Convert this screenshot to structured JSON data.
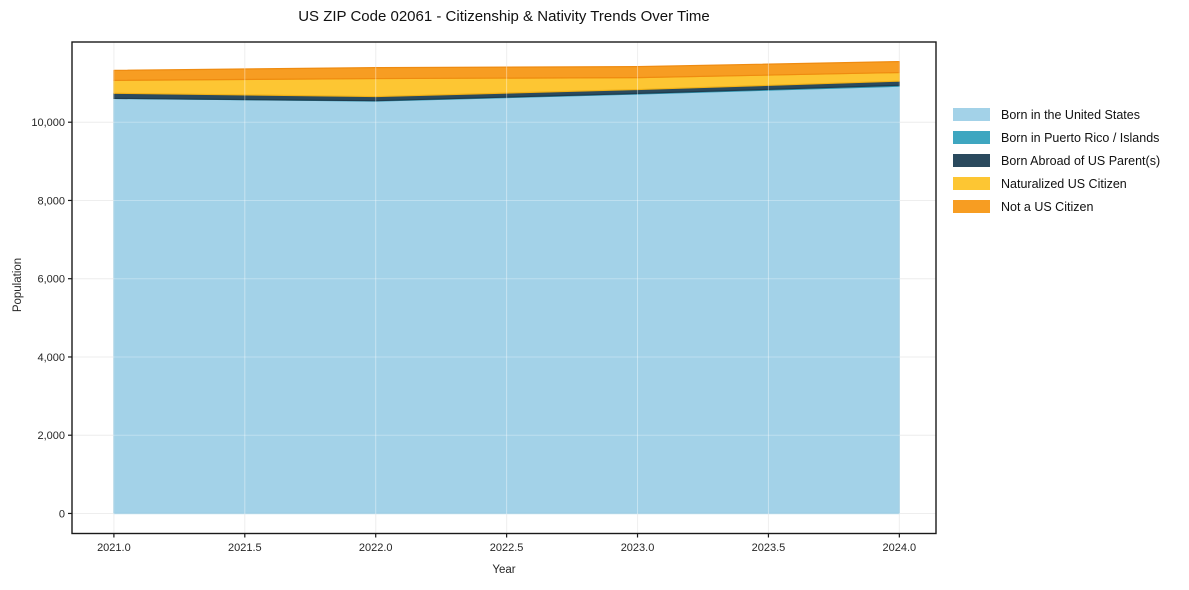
{
  "chart_data": {
    "type": "area",
    "stacked": true,
    "title": "US ZIP Code 02061 - Citizenship & Nativity Trends Over Time",
    "xlabel": "Year",
    "ylabel": "Population",
    "x": [
      2021,
      2022,
      2023,
      2024
    ],
    "series": [
      {
        "name": "Born in the United States",
        "values": [
          10610,
          10540,
          10720,
          10920
        ],
        "color": "#a3d2e8",
        "edge": "#8cc3dd"
      },
      {
        "name": "Born in Puerto Rico / Islands",
        "values": [
          0,
          10,
          15,
          25
        ],
        "color": "#3ea6c0",
        "edge": "#2e93ae"
      },
      {
        "name": "Born Abroad of US Parent(s)",
        "values": [
          130,
          105,
          100,
          105
        ],
        "color": "#2a4a5e",
        "edge": "#203c4d"
      },
      {
        "name": "Naturalized US Citizen",
        "values": [
          330,
          460,
          305,
          220
        ],
        "color": "#fdc633",
        "edge": "#f0b016"
      },
      {
        "name": "Not a US Citizen",
        "values": [
          255,
          280,
          280,
          280
        ],
        "color": "#f79d22",
        "edge": "#ef8b10"
      }
    ],
    "xlim": [
      2020.84,
      2024.14
    ],
    "ylim": [
      -512,
      12050
    ],
    "xticks": [
      2021.0,
      2021.5,
      2022.0,
      2022.5,
      2023.0,
      2023.5,
      2024.0
    ],
    "xticklabels": [
      "2021.0",
      "2021.5",
      "2022.0",
      "2022.5",
      "2023.0",
      "2023.5",
      "2024.0"
    ],
    "yticks": [
      0,
      2000,
      4000,
      6000,
      8000,
      10000
    ],
    "yticklabels": [
      "0",
      "2,000",
      "4,000",
      "6,000",
      "8,000",
      "10,000"
    ],
    "grid": true,
    "legend_position": "right-outside",
    "colors": {
      "background": "#ffffff",
      "grid": "#e7e7e7",
      "spine": "#1a1a1a",
      "tick_text": "#262626"
    }
  }
}
